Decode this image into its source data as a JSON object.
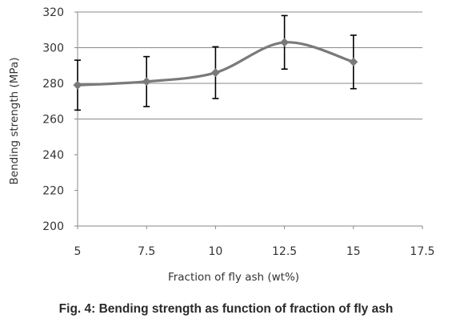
{
  "caption": "Fig. 4: Bending strength as function of fraction of fly ash",
  "chart_data": {
    "type": "line",
    "title": "",
    "xlabel": "Fraction of fly ash (wt%)",
    "ylabel": "Bending strength (MPa)",
    "xlim": [
      5,
      17.5
    ],
    "ylim": [
      200,
      320
    ],
    "xticks": [
      "5",
      "7.5",
      "10",
      "12.5",
      "15",
      "17.5"
    ],
    "yticks": [
      "200",
      "220",
      "240",
      "260",
      "280",
      "300",
      "320"
    ],
    "x_gridlines": false,
    "y_gridlines": [
      260,
      280,
      300,
      320
    ],
    "series": [
      {
        "x": [
          5,
          7.5,
          10,
          12.5,
          15
        ],
        "values": [
          279,
          281,
          286,
          303,
          292
        ],
        "error": [
          14,
          14,
          14.5,
          15,
          15
        ],
        "color": "#7a7a7a",
        "smooth": true,
        "marker": "diamond"
      }
    ]
  }
}
